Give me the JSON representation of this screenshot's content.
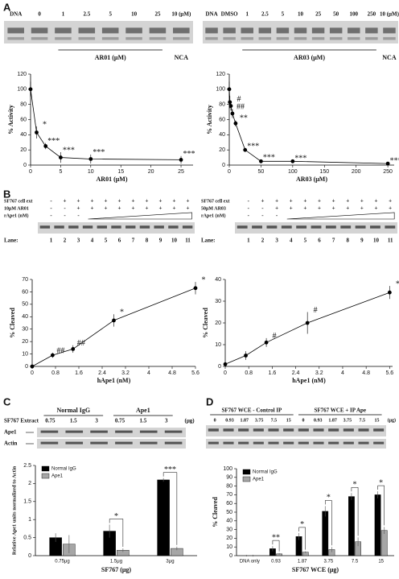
{
  "panels": [
    "A",
    "B",
    "C",
    "D"
  ],
  "gels": {
    "a_left": {
      "lanes": [
        "DNA",
        "0",
        "1",
        "2.5",
        "5",
        "10",
        "25",
        "10 (μM)"
      ],
      "bracket_label": "AR01 (μM)",
      "control": "NCA"
    },
    "a_right": {
      "lanes": [
        "DNA",
        "DMSO",
        "1",
        "2.5",
        "5",
        "10",
        "25",
        "50",
        "100",
        "250",
        "10 (μM)"
      ],
      "bracket_label": "AR03 (μM)",
      "control": "NCA"
    },
    "b_left": {
      "rows": [
        {
          "label": "SF767 cell ext",
          "marks": [
            "-",
            "+",
            "+",
            "+",
            "+",
            "+",
            "+",
            "+",
            "+",
            "+",
            "+"
          ]
        },
        {
          "label": "10μM AR01",
          "marks": [
            "-",
            "-",
            "+",
            "+",
            "+",
            "+",
            "+",
            "+",
            "+",
            "+",
            "+"
          ]
        },
        {
          "label": "rApe1 (nM)",
          "marks": [
            "-",
            "-",
            "-"
          ]
        }
      ],
      "lane_label": "Lane:",
      "lanes": [
        "1",
        "2",
        "3",
        "4",
        "5",
        "6",
        "7",
        "8",
        "9",
        "10",
        "11"
      ]
    },
    "b_right": {
      "rows": [
        {
          "label": "SF767 cell ext",
          "marks": [
            "-",
            "+",
            "+",
            "+",
            "+",
            "+",
            "+",
            "+",
            "+",
            "+",
            "+"
          ]
        },
        {
          "label": "50μM AR03",
          "marks": [
            "-",
            "-",
            "+",
            "+",
            "+",
            "+",
            "+",
            "+",
            "+",
            "+",
            "+"
          ]
        },
        {
          "label": "rApe1 (nM)",
          "marks": [
            "-",
            "-",
            "-"
          ]
        }
      ],
      "lane_label": "Lane:",
      "lanes": [
        "1",
        "2",
        "3",
        "4",
        "5",
        "6",
        "7",
        "8",
        "9",
        "10",
        "11"
      ]
    },
    "c": {
      "groups": [
        "Normal IgG",
        "Ape1"
      ],
      "row_label": "SF767 Extract",
      "lanes": [
        "0.75",
        "1.5",
        "3",
        "0.75",
        "1.5",
        "3",
        "(μg)"
      ],
      "bands": [
        "Ape1",
        "Actin"
      ]
    },
    "d": {
      "groups": [
        "SF767 WCE - Control IP",
        "SF767 WCE + IP Ape"
      ],
      "lanes": [
        "0",
        "0.93",
        "1.87",
        "3.75",
        "7.5",
        "15",
        "0",
        "0.93",
        "1.87",
        "3.75",
        "7.5",
        "15",
        "(μg)"
      ]
    }
  },
  "chart_data": [
    {
      "type": "line",
      "xlabel": "AR01 (μM)",
      "ylabel": "% Activity",
      "x": [
        0,
        1,
        2.5,
        5,
        10,
        25
      ],
      "xlim": [
        0,
        27
      ],
      "xticks": [
        0,
        5,
        10,
        15,
        20,
        25
      ],
      "ylim": [
        0,
        120
      ],
      "yticks": [
        0,
        20,
        40,
        60,
        80,
        100,
        120
      ],
      "series": [
        {
          "color": "#000000",
          "values": [
            100,
            43,
            25,
            10,
            8,
            7
          ],
          "errors": [
            10,
            8,
            4,
            7,
            6,
            5
          ],
          "annotations": [
            null,
            "*",
            "***",
            "***",
            "***",
            "***"
          ]
        }
      ]
    },
    {
      "type": "line",
      "xlabel": "AR03 (μM)",
      "ylabel": "% Activity",
      "x": [
        0,
        1,
        2.5,
        5,
        10,
        25,
        50,
        100,
        250
      ],
      "xlim": [
        0,
        260
      ],
      "xticks": [
        0,
        50,
        100,
        150,
        200,
        250
      ],
      "ylim": [
        0,
        120
      ],
      "yticks": [
        0,
        20,
        40,
        60,
        80,
        100,
        120
      ],
      "series": [
        {
          "color": "#000000",
          "values": [
            100,
            83,
            78,
            68,
            55,
            20,
            5,
            5,
            2
          ],
          "errors": [
            10,
            8,
            6,
            6,
            4,
            2,
            2,
            1,
            1
          ],
          "annotations": [
            null,
            null,
            "#",
            "##",
            "**",
            "***",
            "***",
            "***",
            "***"
          ]
        }
      ]
    },
    {
      "type": "line",
      "xlabel": "hApe1 (nM)",
      "ylabel": "% Cleaved",
      "x": [
        0,
        0.7,
        1.4,
        2.8,
        5.6
      ],
      "xlim": [
        0,
        5.6
      ],
      "xticks": [
        0,
        0.8,
        1.6,
        2.4,
        3.2,
        4,
        4.8,
        5.6
      ],
      "ylim": [
        0,
        70
      ],
      "yticks": [
        0,
        10,
        20,
        30,
        40,
        50,
        60,
        70
      ],
      "series": [
        {
          "color": "#000000",
          "values": [
            0,
            9,
            14,
            37,
            63
          ],
          "errors": [
            1,
            2,
            3,
            5,
            5
          ],
          "annotations": [
            null,
            "##",
            "##",
            "*",
            "*"
          ]
        }
      ]
    },
    {
      "type": "line",
      "xlabel": "hApe1 (nM)",
      "ylabel": "% Cleaved",
      "x": [
        0,
        0.7,
        1.4,
        2.8,
        5.6
      ],
      "xlim": [
        0,
        5.7
      ],
      "xticks": [
        0,
        0.8,
        1.6,
        2.4,
        3.2,
        4,
        4.8,
        5.6
      ],
      "ylim": [
        0,
        40
      ],
      "yticks": [
        0,
        10,
        20,
        30,
        40
      ],
      "series": [
        {
          "color": "#000000",
          "values": [
            1,
            5,
            11,
            20,
            34
          ],
          "errors": [
            1,
            2,
            2,
            5,
            3
          ],
          "annotations": [
            null,
            null,
            "#",
            "#",
            "*"
          ]
        }
      ]
    },
    {
      "type": "bar",
      "xlabel": "SF767 (μg)",
      "ylabel": "Relative Ape1 units normalized to Actin",
      "categories": [
        "0.75μg",
        "1.5μg",
        "3μg"
      ],
      "ylim": [
        0,
        2.5
      ],
      "yticks": [
        0,
        0.5,
        1,
        1.5,
        2,
        2.5
      ],
      "annotations": [
        null,
        "*",
        "***"
      ],
      "series": [
        {
          "name": "Normal IgG",
          "color": "#000000",
          "values": [
            0.5,
            0.68,
            2.1
          ],
          "errors": [
            0.12,
            0.18,
            0.05
          ]
        },
        {
          "name": "Ape1",
          "color": "#a6a6a6",
          "values": [
            0.32,
            0.15,
            0.2
          ],
          "errors": [
            0.25,
            0.05,
            0.05
          ]
        }
      ]
    },
    {
      "type": "bar",
      "xlabel": "SF767 WCE (μg)",
      "ylabel": "% Cleaved",
      "categories": [
        "DNA only",
        "0.93",
        "1.87",
        "3.75",
        "7.5",
        "15"
      ],
      "ylim": [
        0,
        100
      ],
      "yticks": [
        0,
        10,
        20,
        30,
        40,
        50,
        60,
        70,
        80,
        90,
        100
      ],
      "annotations": [
        null,
        "**",
        "*",
        "*",
        "*",
        "*"
      ],
      "series": [
        {
          "name": "Normal IgG",
          "color": "#000000",
          "values": [
            0,
            8,
            22,
            51,
            68,
            70
          ],
          "errors": [
            1,
            3,
            4,
            6,
            4,
            4
          ]
        },
        {
          "name": "Ape1",
          "color": "#a6a6a6",
          "values": [
            0,
            2,
            4,
            7,
            16,
            29
          ],
          "errors": [
            1,
            1,
            1,
            3,
            5,
            4
          ]
        }
      ]
    }
  ]
}
